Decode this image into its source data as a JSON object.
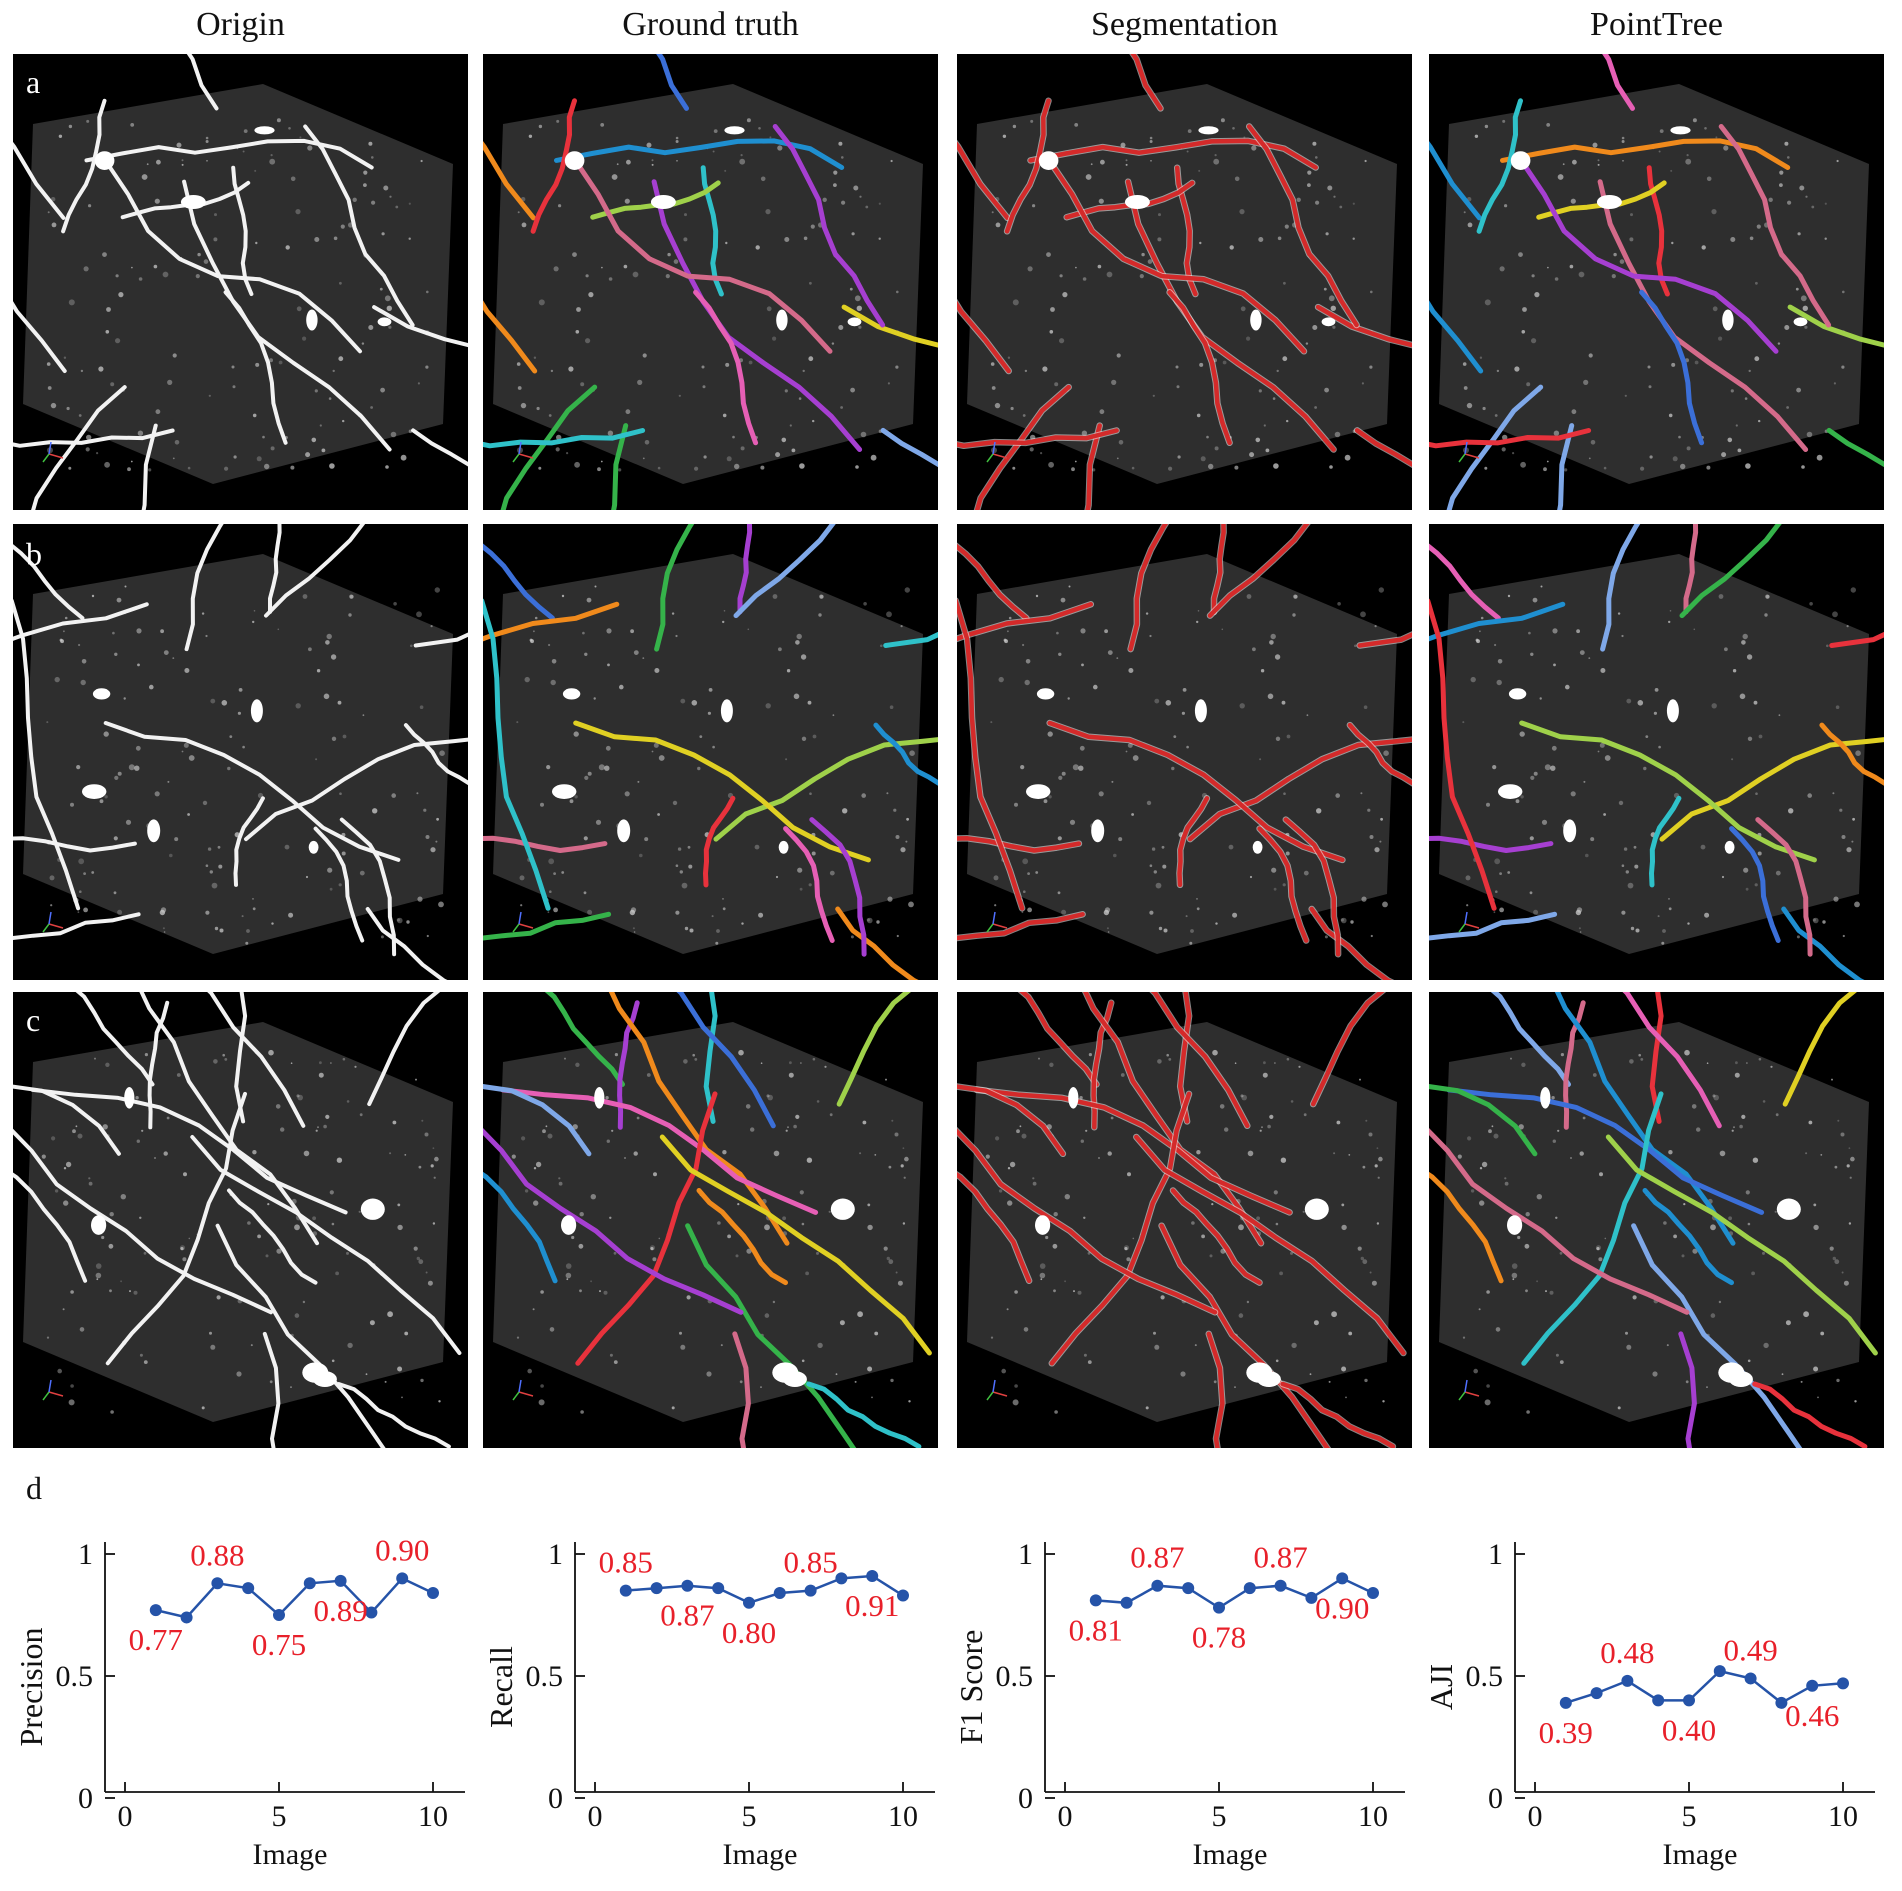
{
  "columns": [
    "Origin",
    "Ground truth",
    "Segmentation",
    "PointTree"
  ],
  "rows": [
    {
      "letter": "a"
    },
    {
      "letter": "b"
    },
    {
      "letter": "c"
    }
  ],
  "section_d": "d",
  "colors": {
    "volume_face": "#2e2e2e",
    "background": "#000000",
    "segmentation": "#d42a2a",
    "origin_fiber": "#f2f2f2",
    "series_line": "#2553a8",
    "label_red": "#e8202a",
    "instance_palette": [
      "#e8323c",
      "#3b6fd8",
      "#e0d023",
      "#35b34a",
      "#a63fd1",
      "#f08a1c",
      "#2fc1c9",
      "#e65fb5",
      "#9fd14a",
      "#7fa8e8",
      "#d46a8a",
      "#1f8fd0"
    ]
  },
  "charts": [
    {
      "type": "line",
      "ylabel": "Precision",
      "xlabel": "Image",
      "xticks": [
        "0",
        "5",
        "10"
      ],
      "yticks": [
        "0",
        "0.5",
        "1"
      ],
      "xlim": [
        0,
        10
      ],
      "ylim": [
        0,
        1
      ],
      "x": [
        1,
        2,
        3,
        4,
        5,
        6,
        7,
        8,
        9,
        10
      ],
      "y": [
        0.77,
        0.74,
        0.88,
        0.86,
        0.75,
        0.88,
        0.89,
        0.76,
        0.9,
        0.84
      ],
      "annotations": [
        {
          "i": 0,
          "text": "0.77",
          "pos": "below"
        },
        {
          "i": 2,
          "text": "0.88",
          "pos": "above"
        },
        {
          "i": 4,
          "text": "0.75",
          "pos": "below"
        },
        {
          "i": 6,
          "text": "0.89",
          "pos": "below"
        },
        {
          "i": 8,
          "text": "0.90",
          "pos": "above"
        }
      ]
    },
    {
      "type": "line",
      "ylabel": "Recall",
      "xlabel": "Image",
      "xticks": [
        "0",
        "5",
        "10"
      ],
      "yticks": [
        "0",
        "0.5",
        "1"
      ],
      "xlim": [
        0,
        10
      ],
      "ylim": [
        0,
        1
      ],
      "x": [
        1,
        2,
        3,
        4,
        5,
        6,
        7,
        8,
        9,
        10
      ],
      "y": [
        0.85,
        0.86,
        0.87,
        0.86,
        0.8,
        0.84,
        0.85,
        0.9,
        0.91,
        0.83
      ],
      "annotations": [
        {
          "i": 0,
          "text": "0.85",
          "pos": "above"
        },
        {
          "i": 2,
          "text": "0.87",
          "pos": "below"
        },
        {
          "i": 4,
          "text": "0.80",
          "pos": "below"
        },
        {
          "i": 6,
          "text": "0.85",
          "pos": "above"
        },
        {
          "i": 8,
          "text": "0.91",
          "pos": "below"
        }
      ]
    },
    {
      "type": "line",
      "ylabel": "F1 Score",
      "xlabel": "Image",
      "xticks": [
        "0",
        "5",
        "10"
      ],
      "yticks": [
        "0",
        "0.5",
        "1"
      ],
      "xlim": [
        0,
        10
      ],
      "ylim": [
        0,
        1
      ],
      "x": [
        1,
        2,
        3,
        4,
        5,
        6,
        7,
        8,
        9,
        10
      ],
      "y": [
        0.81,
        0.8,
        0.87,
        0.86,
        0.78,
        0.86,
        0.87,
        0.82,
        0.9,
        0.84
      ],
      "annotations": [
        {
          "i": 0,
          "text": "0.81",
          "pos": "below"
        },
        {
          "i": 2,
          "text": "0.87",
          "pos": "above"
        },
        {
          "i": 4,
          "text": "0.78",
          "pos": "below"
        },
        {
          "i": 6,
          "text": "0.87",
          "pos": "above"
        },
        {
          "i": 8,
          "text": "0.90",
          "pos": "below"
        }
      ]
    },
    {
      "type": "line",
      "ylabel": "AJI",
      "xlabel": "Image",
      "xticks": [
        "0",
        "5",
        "10"
      ],
      "yticks": [
        "0",
        "0.5",
        "1"
      ],
      "xlim": [
        0,
        10
      ],
      "ylim": [
        0,
        1
      ],
      "x": [
        1,
        2,
        3,
        4,
        5,
        6,
        7,
        8,
        9,
        10
      ],
      "y": [
        0.39,
        0.43,
        0.48,
        0.4,
        0.4,
        0.52,
        0.49,
        0.39,
        0.46,
        0.47
      ],
      "annotations": [
        {
          "i": 0,
          "text": "0.39",
          "pos": "below"
        },
        {
          "i": 2,
          "text": "0.48",
          "pos": "above"
        },
        {
          "i": 4,
          "text": "0.40",
          "pos": "below"
        },
        {
          "i": 6,
          "text": "0.49",
          "pos": "above"
        },
        {
          "i": 8,
          "text": "0.46",
          "pos": "below"
        }
      ]
    }
  ]
}
